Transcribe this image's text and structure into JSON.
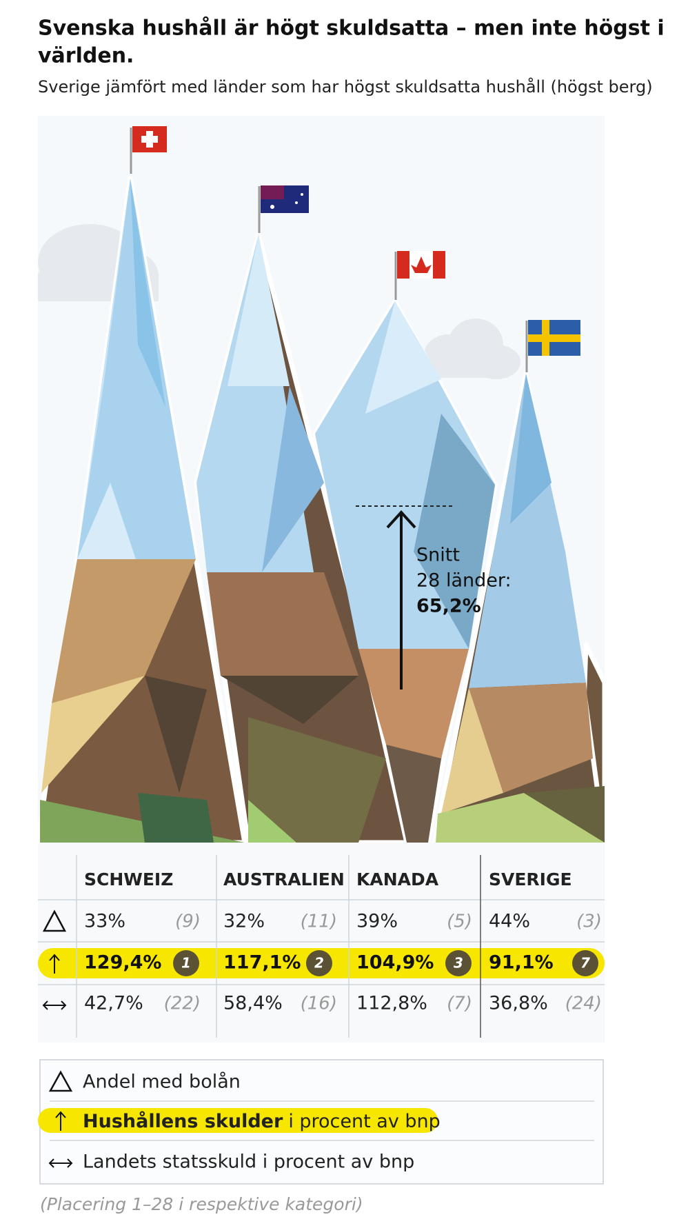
{
  "header": {
    "title_lines": [
      "Svenska hushåll är högt skuldsatta – men inte högst i",
      "världen."
    ],
    "subtitle": "Sverige jämfört med länder som har högst skuldsatta hushåll (högst berg)"
  },
  "annotation": {
    "lines": [
      "Snitt",
      "28 länder:"
    ],
    "value": "65,2%"
  },
  "table": {
    "columns": [
      "SCHWEIZ",
      "AUSTRALIEN",
      "KANADA",
      "SVERIGE"
    ],
    "rows": [
      {
        "values": [
          "33%",
          "32%",
          "39%",
          "44%"
        ],
        "ranks": [
          "(9)",
          "(11)",
          "(5)",
          "(3)"
        ]
      },
      {
        "values": [
          "129,4%",
          "117,1%",
          "104,9%",
          "91,1%"
        ],
        "ranks": [
          "1",
          "2",
          "3",
          "7"
        ]
      },
      {
        "values": [
          "42,7%",
          "58,4%",
          "112,8%",
          "36,8%"
        ],
        "ranks": [
          "(22)",
          "(16)",
          "(7)",
          "(24)"
        ]
      }
    ]
  },
  "legend": [
    {
      "text": "Andel med bolån"
    },
    {
      "bold": "Hushållens skulder",
      "text": "i procent av bnp"
    },
    {
      "text": "Landets statsskuld i procent av bnp"
    }
  ],
  "footnote": "(Placering 1–28 i respektive kategori)"
}
